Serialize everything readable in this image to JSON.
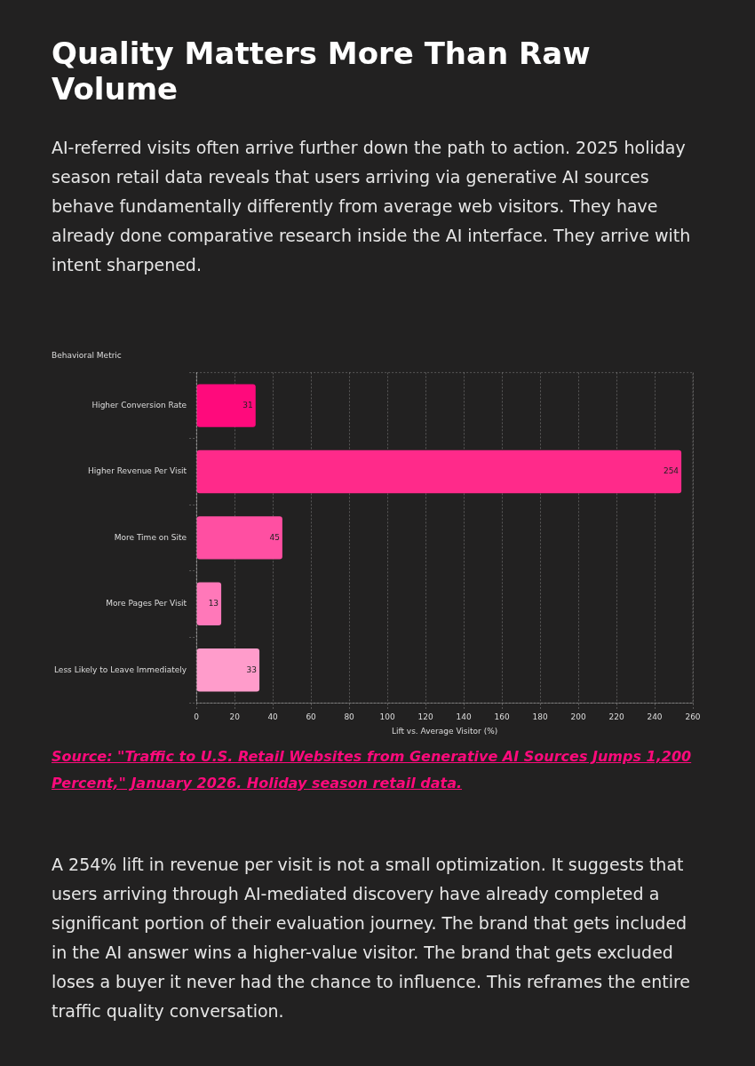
{
  "chart_data": {
    "type": "bar",
    "orientation": "horizontal",
    "title": "Quality Matters More Than Raw Volume",
    "subtitle": "AI-referred visits often arrive further down the path to action. 2025 holiday season retail data reveals that users arriving via generative AI sources behave fundamentally differently from average web visitors. They have already done comparative research inside the AI interface. They arrive with intent sharpened.",
    "ylabel": "Behavioral Metric",
    "xlabel": "Lift vs. Average Visitor (%)",
    "categories": [
      "Higher Conversion Rate",
      "Higher Revenue Per Visit",
      "More Time on Site",
      "More Pages Per Visit",
      "Less Likely to Leave Immediately"
    ],
    "values": [
      31,
      254,
      45,
      13,
      33
    ],
    "colors": [
      "#ff0a7c",
      "#ff2a8a",
      "#ff4fa2",
      "#ff78b9",
      "#ff9ccb"
    ],
    "xlim": [
      0,
      260
    ],
    "xticks": [
      0,
      20,
      40,
      60,
      80,
      100,
      120,
      140,
      160,
      180,
      200,
      220,
      240,
      260
    ],
    "grid": "x",
    "data_labels": true,
    "annotations": [
      "Source: \"Traffic to U.S. Retail Websites from Generative AI Sources Jumps 1,200 Percent,\" January 2026. Holiday season retail data.",
      "A 254% lift in revenue per visit is not a small optimization. It suggests that users arriving through AI-mediated discovery have already completed a significant portion of their evaluation journey. The brand that gets included in the AI answer wins a higher-value visitor. The brand that gets excluded loses a buyer it never had the chance to influence. This reframes the entire traffic quality conversation."
    ]
  }
}
